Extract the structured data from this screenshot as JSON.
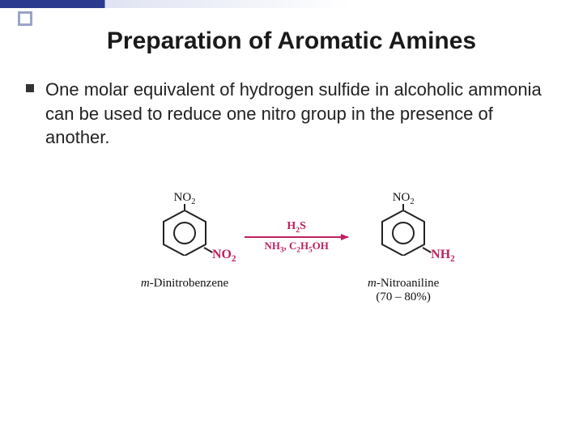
{
  "title": "Preparation of Aromatic Amines",
  "bullet": "One molar equivalent of hydrogen sulfide in alcoholic ammonia can be used to reduce one nitro group in the presence of another.",
  "reaction": {
    "reactant": {
      "top_group_html": "NO<span class='sub'>2</span>",
      "right_group_html": "NO<span class='sub'>2</span>",
      "right_color": "#c02060",
      "name_prefix": "m",
      "name_rest": "-Dinitrobenzene"
    },
    "arrow": {
      "top_html": "H<span class='sub'>2</span>S",
      "bottom_html": "NH<span class='sub'>3</span>, C<span class='sub'>2</span>H<span class='sub'>5</span>OH",
      "color": "#c02060"
    },
    "product": {
      "top_group_html": "NO<span class='sub'>2</span>",
      "right_group_html": "NH<span class='sub'>2</span>",
      "right_color": "#c02060",
      "name_prefix": "m",
      "name_rest": "-Nitroaniline",
      "yield": "(70 – 80%)"
    }
  },
  "style": {
    "title_fontsize": 30,
    "body_fontsize": 22,
    "accent_dark": "#2b3a8f",
    "accent_light": "#9aa4c8",
    "magenta": "#c02060",
    "ring_stroke": "#222222"
  }
}
